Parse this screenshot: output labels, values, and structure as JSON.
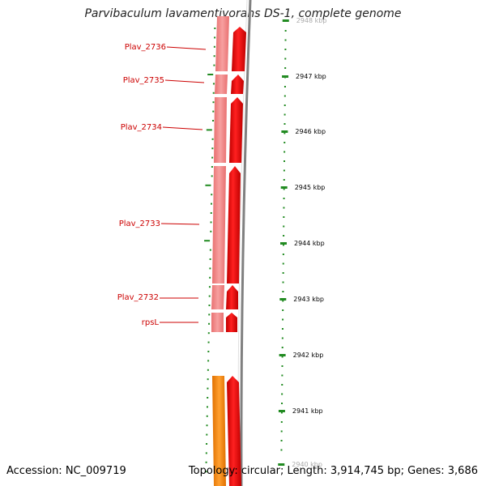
{
  "map": {
    "title": "Parvibaculum lavamentivorans DS-1, complete genome",
    "accession": "Accession: NC_009719",
    "topology": "Topology: circular; Length: 3,914,745 bp; Genes: 3,686"
  },
  "genes": [
    {
      "label": "Plav_2736"
    },
    {
      "label": "Plav_2735"
    },
    {
      "label": "Plav_2734"
    },
    {
      "label": "Plav_2733"
    },
    {
      "label": "Plav_2732"
    },
    {
      "label": "rpsL"
    }
  ],
  "scale": [
    {
      "label": "2948 kbp",
      "faded": true
    },
    {
      "label": "2947 kbp"
    },
    {
      "label": "2946 kbp"
    },
    {
      "label": "2945 kbp"
    },
    {
      "label": "2944 kbp"
    },
    {
      "label": "2943 kbp"
    },
    {
      "label": "2942 kbp"
    },
    {
      "label": "2941 kbp"
    },
    {
      "label": "2940 kbp",
      "faded": true
    }
  ],
  "colors": {
    "cds_light": "#f08080",
    "cds_dark": "#ee0000",
    "other_feature": "#ff8c00",
    "backbone": "#808080",
    "tick": "#228b22",
    "gene_label": "#cc0000"
  }
}
